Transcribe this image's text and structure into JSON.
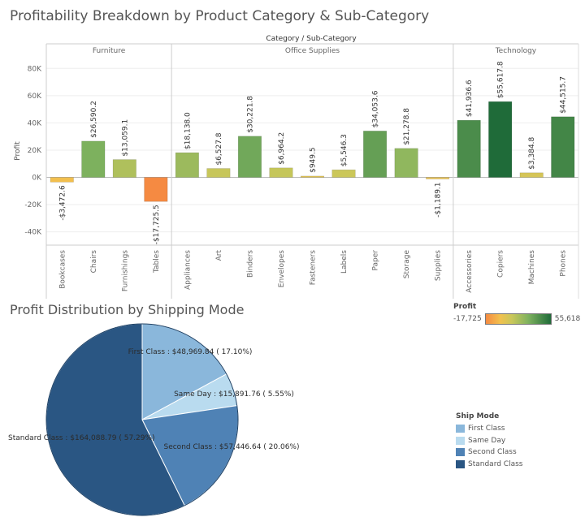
{
  "bar_chart": {
    "title": "Profitability Breakdown by Product Category & Sub-Category",
    "header": "Category  /  Sub-Category",
    "ylabel": "Profit",
    "yticks": [
      "80K",
      "60K",
      "40K",
      "20K",
      "0K",
      "-20K",
      "-40K"
    ]
  },
  "pie_chart": {
    "title": "Profit Distribution by Shipping Mode"
  },
  "legend": {
    "title": "Ship Mode",
    "items": [
      {
        "label": "First Class",
        "color": "#8ab7db"
      },
      {
        "label": "Same Day",
        "color": "#b9dbef"
      },
      {
        "label": "Second Class",
        "color": "#4f82b5"
      },
      {
        "label": "Standard Class",
        "color": "#2a5683"
      }
    ]
  },
  "colorbar": {
    "title": "Profit",
    "min_label": "-17,725",
    "max_label": "55,618"
  },
  "chart_data": [
    {
      "type": "bar",
      "title": "Profitability Breakdown by Product Category & Sub-Category",
      "xlabel": "Category / Sub-Category",
      "ylabel": "Profit",
      "ylim": [
        -50000,
        90000
      ],
      "groups": [
        {
          "category": "Furniture",
          "sub": [
            "Bookcases",
            "Chairs",
            "Furnishings",
            "Tables"
          ],
          "values": [
            -3472.6,
            26590.2,
            13059.1,
            -17725.5
          ],
          "labels": [
            "-$3,472.6",
            "$26,590.2",
            "$13,059.1",
            "-$17,725.5"
          ]
        },
        {
          "category": "Office Supplies",
          "sub": [
            "Appliances",
            "Art",
            "Binders",
            "Envelopes",
            "Fasteners",
            "Labels",
            "Paper",
            "Storage",
            "Supplies"
          ],
          "values": [
            18138.0,
            6527.8,
            30221.8,
            6964.2,
            949.5,
            5546.3,
            34053.6,
            21278.8,
            -1189.1
          ],
          "labels": [
            "$18,138.0",
            "$6,527.8",
            "$30,221.8",
            "$6,964.2",
            "$949.5",
            "$5,546.3",
            "$34,053.6",
            "$21,278.8",
            "-$1,189.1"
          ]
        },
        {
          "category": "Technology",
          "sub": [
            "Accessories",
            "Copiers",
            "Machines",
            "Phones"
          ],
          "values": [
            41936.6,
            55617.8,
            3384.8,
            44515.7
          ],
          "labels": [
            "$41,936.6",
            "$55,617.8",
            "$3,384.8",
            "$44,515.7"
          ]
        }
      ]
    },
    {
      "type": "pie",
      "title": "Profit Distribution by Shipping Mode",
      "slices": [
        {
          "name": "First Class",
          "value": 48969.84,
          "pct": 17.1,
          "label": "First Class : $48,969.84 ( 17.10%)",
          "color": "#8ab7db"
        },
        {
          "name": "Same Day",
          "value": 15891.76,
          "pct": 5.55,
          "label": "Same Day : $15,891.76 ( 5.55%)",
          "color": "#b9dbef"
        },
        {
          "name": "Second Class",
          "value": 57446.64,
          "pct": 20.06,
          "label": "Second Class : $57,446.64 ( 20.06%)",
          "color": "#4f82b5"
        },
        {
          "name": "Standard Class",
          "value": 164088.79,
          "pct": 57.29,
          "label": "Standard Class : $164,088.79 ( 57.29%)",
          "color": "#2a5683"
        }
      ]
    }
  ]
}
